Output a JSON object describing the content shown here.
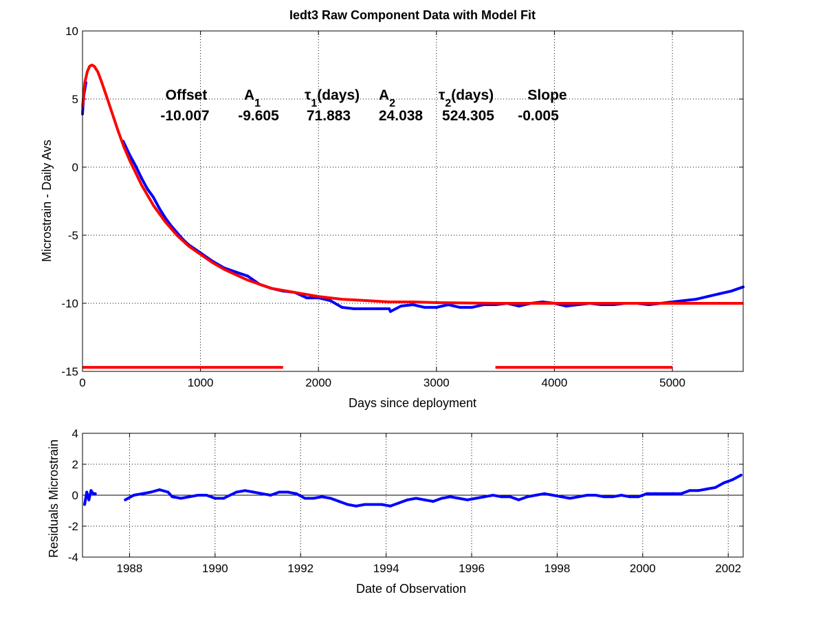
{
  "chart_data": [
    {
      "type": "line",
      "title": "Iedt3  Raw Component Data with Model Fit",
      "xlabel": "Days since deployment",
      "ylabel": "Microstrain - Daily Avs",
      "xlim": [
        0,
        5600
      ],
      "ylim": [
        -15,
        10
      ],
      "xticks": [
        0,
        1000,
        2000,
        3000,
        4000,
        5000
      ],
      "yticks": [
        -15,
        -10,
        -5,
        0,
        5,
        10
      ],
      "grid": true,
      "colors": {
        "data": "#0000ff",
        "fit": "#ff0000"
      },
      "fit_parameters": [
        {
          "label": "Offset",
          "value": "-10.007"
        },
        {
          "label": "A",
          "subscript": "1",
          "value": "-9.605"
        },
        {
          "label": "τ",
          "subscript": "1",
          "suffix": "(days)",
          "value": "71.883"
        },
        {
          "label": "A",
          "subscript": "2",
          "value": "24.038"
        },
        {
          "label": "τ",
          "subscript": "2",
          "suffix": "(days)",
          "value": "524.305"
        },
        {
          "label": "Slope",
          "value": "-0.005"
        }
      ],
      "series": [
        {
          "role": "data",
          "style": "points",
          "x": [
            0,
            5,
            10,
            15,
            20,
            25,
            30,
            345,
            400,
            450,
            500,
            550,
            600,
            650,
            700,
            750,
            800,
            850,
            900,
            950,
            1000,
            1100,
            1200,
            1300,
            1400,
            1500,
            1600,
            1700,
            1800,
            1900,
            2000,
            2100,
            2200,
            2300,
            2400,
            2500,
            2600,
            2610,
            2700,
            2800,
            2900,
            3000,
            3100,
            3200,
            3300,
            3400,
            3500,
            3600,
            3700,
            3800,
            3900,
            4000,
            4100,
            4200,
            4300,
            4400,
            4500,
            4600,
            4700,
            4800,
            4900,
            5000,
            5100,
            5200,
            5300,
            5400,
            5500,
            5600
          ],
          "y": [
            3.9,
            4.6,
            5.2,
            5.5,
            5.7,
            6.0,
            6.2,
            1.9,
            0.9,
            0.1,
            -0.8,
            -1.6,
            -2.2,
            -3.0,
            -3.7,
            -4.3,
            -4.8,
            -5.3,
            -5.7,
            -6.0,
            -6.3,
            -6.9,
            -7.4,
            -7.7,
            -8.0,
            -8.6,
            -8.9,
            -9.1,
            -9.2,
            -9.6,
            -9.6,
            -9.8,
            -10.3,
            -10.4,
            -10.4,
            -10.4,
            -10.4,
            -10.6,
            -10.2,
            -10.1,
            -10.3,
            -10.3,
            -10.1,
            -10.3,
            -10.3,
            -10.1,
            -10.1,
            -10.0,
            -10.2,
            -10.0,
            -9.9,
            -10.0,
            -10.2,
            -10.1,
            -10.0,
            -10.1,
            -10.1,
            -10.0,
            -10.0,
            -10.1,
            -10.0,
            -9.9,
            -9.8,
            -9.7,
            -9.5,
            -9.3,
            -9.1,
            -8.8
          ]
        },
        {
          "role": "fit",
          "style": "line",
          "x": [
            0,
            20,
            40,
            60,
            80,
            100,
            130,
            160,
            200,
            250,
            300,
            350,
            400,
            450,
            500,
            600,
            700,
            800,
            900,
            1000,
            1100,
            1200,
            1300,
            1400,
            1500,
            1600,
            1800,
            2000,
            2200,
            2400,
            2600,
            2800,
            3000,
            3500,
            4000,
            4500,
            5000,
            5600
          ],
          "y": [
            4.4,
            6.2,
            7.0,
            7.4,
            7.5,
            7.4,
            7.0,
            6.3,
            5.3,
            4.0,
            2.7,
            1.5,
            0.5,
            -0.4,
            -1.3,
            -2.8,
            -4.0,
            -5.0,
            -5.8,
            -6.4,
            -7.0,
            -7.5,
            -7.9,
            -8.3,
            -8.6,
            -8.9,
            -9.2,
            -9.5,
            -9.7,
            -9.8,
            -9.9,
            -9.9,
            -9.95,
            -10.0,
            -10.0,
            -10.0,
            -10.0,
            -10.0
          ]
        },
        {
          "role": "fit-window",
          "style": "line",
          "x": [
            0,
            1700
          ],
          "y": [
            -14.7,
            -14.7
          ]
        },
        {
          "role": "fit-window",
          "style": "line",
          "x": [
            3500,
            5000
          ],
          "y": [
            -14.7,
            -14.7
          ]
        }
      ]
    },
    {
      "type": "line",
      "title": "",
      "xlabel": "Date of Observation",
      "ylabel": "Residuals Microstrain",
      "xlim": [
        1986.9,
        2002.35
      ],
      "ylim": [
        -4,
        4
      ],
      "xticks": [
        1988,
        1990,
        1992,
        1994,
        1996,
        1998,
        2000,
        2002
      ],
      "yticks": [
        -4,
        -2,
        0,
        2,
        4
      ],
      "grid": true,
      "zero_line": true,
      "colors": {
        "data": "#0000ff",
        "zero_line": "#000000"
      },
      "series": [
        {
          "role": "residuals",
          "style": "points",
          "x": [
            1986.95,
            1987.0,
            1987.05,
            1987.1,
            1987.15,
            1987.2,
            1987.9,
            1988.1,
            1988.3,
            1988.5,
            1988.7,
            1988.9,
            1989.0,
            1989.2,
            1989.4,
            1989.6,
            1989.8,
            1990.0,
            1990.2,
            1990.5,
            1990.7,
            1990.9,
            1991.1,
            1991.3,
            1991.5,
            1991.7,
            1991.9,
            1992.1,
            1992.3,
            1992.5,
            1992.7,
            1992.9,
            1993.1,
            1993.3,
            1993.5,
            1993.7,
            1993.9,
            1994.1,
            1994.3,
            1994.5,
            1994.7,
            1994.9,
            1995.1,
            1995.3,
            1995.5,
            1995.7,
            1995.9,
            1996.1,
            1996.3,
            1996.5,
            1996.7,
            1996.9,
            1997.1,
            1997.3,
            1997.5,
            1997.7,
            1997.9,
            1998.1,
            1998.3,
            1998.5,
            1998.7,
            1998.9,
            1999.1,
            1999.3,
            1999.5,
            1999.7,
            1999.9,
            2000.1,
            2000.3,
            2000.5,
            2000.7,
            2000.9,
            2001.1,
            2001.3,
            2001.5,
            2001.7,
            2001.9,
            2002.1,
            2002.3
          ],
          "y": [
            -0.6,
            0.2,
            -0.3,
            0.3,
            0.1,
            0.1,
            -0.3,
            0.0,
            0.1,
            0.2,
            0.35,
            0.2,
            -0.1,
            -0.2,
            -0.1,
            0.0,
            0.0,
            -0.2,
            -0.2,
            0.2,
            0.3,
            0.2,
            0.1,
            0.0,
            0.2,
            0.2,
            0.1,
            -0.2,
            -0.2,
            -0.1,
            -0.2,
            -0.4,
            -0.6,
            -0.7,
            -0.6,
            -0.6,
            -0.6,
            -0.7,
            -0.5,
            -0.3,
            -0.2,
            -0.3,
            -0.4,
            -0.2,
            -0.1,
            -0.2,
            -0.3,
            -0.2,
            -0.1,
            0.0,
            -0.1,
            -0.1,
            -0.3,
            -0.1,
            0.0,
            0.1,
            0.0,
            -0.1,
            -0.2,
            -0.1,
            0.0,
            0.0,
            -0.1,
            -0.1,
            0.0,
            -0.1,
            -0.1,
            0.1,
            0.1,
            0.1,
            0.1,
            0.1,
            0.3,
            0.3,
            0.4,
            0.5,
            0.8,
            1.0,
            1.3
          ]
        }
      ]
    }
  ]
}
